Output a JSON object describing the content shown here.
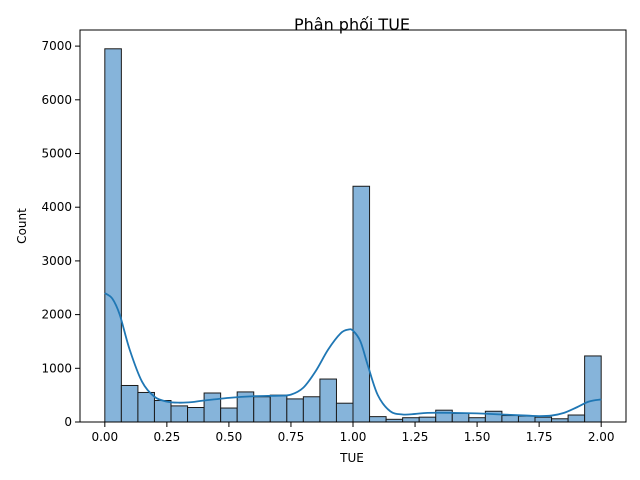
{
  "chart_data": {
    "type": "bar",
    "title": "Phân phối TUE",
    "xlabel": "TUE",
    "ylabel": "Count",
    "xlim": [
      -0.1,
      2.1
    ],
    "ylim": [
      0,
      7300
    ],
    "x_ticks": [
      "0.00",
      "0.25",
      "0.50",
      "0.75",
      "1.00",
      "1.25",
      "1.50",
      "1.75",
      "2.00"
    ],
    "y_ticks": [
      "0",
      "1000",
      "2000",
      "3000",
      "4000",
      "5000",
      "6000",
      "7000"
    ],
    "bin_width": 0.0667,
    "bins": [
      {
        "x0": 0.0,
        "count": 6950
      },
      {
        "x0": 0.0667,
        "count": 680
      },
      {
        "x0": 0.1333,
        "count": 550
      },
      {
        "x0": 0.2,
        "count": 400
      },
      {
        "x0": 0.2667,
        "count": 300
      },
      {
        "x0": 0.3333,
        "count": 270
      },
      {
        "x0": 0.4,
        "count": 540
      },
      {
        "x0": 0.4667,
        "count": 260
      },
      {
        "x0": 0.5333,
        "count": 560
      },
      {
        "x0": 0.6,
        "count": 470
      },
      {
        "x0": 0.6667,
        "count": 500
      },
      {
        "x0": 0.7333,
        "count": 430
      },
      {
        "x0": 0.8,
        "count": 470
      },
      {
        "x0": 0.8667,
        "count": 800
      },
      {
        "x0": 0.9333,
        "count": 350
      },
      {
        "x0": 1.0,
        "count": 4390
      },
      {
        "x0": 1.0667,
        "count": 100
      },
      {
        "x0": 1.1333,
        "count": 50
      },
      {
        "x0": 1.2,
        "count": 80
      },
      {
        "x0": 1.2667,
        "count": 90
      },
      {
        "x0": 1.3333,
        "count": 220
      },
      {
        "x0": 1.4,
        "count": 160
      },
      {
        "x0": 1.4667,
        "count": 80
      },
      {
        "x0": 1.5333,
        "count": 200
      },
      {
        "x0": 1.6,
        "count": 120
      },
      {
        "x0": 1.6667,
        "count": 110
      },
      {
        "x0": 1.7333,
        "count": 90
      },
      {
        "x0": 1.8,
        "count": 60
      },
      {
        "x0": 1.8667,
        "count": 130
      },
      {
        "x0": 1.9333,
        "count": 1230
      }
    ],
    "kde": {
      "x": [
        0.0,
        0.03,
        0.06,
        0.1,
        0.15,
        0.2,
        0.25,
        0.3,
        0.35,
        0.4,
        0.5,
        0.6,
        0.7,
        0.75,
        0.8,
        0.85,
        0.9,
        0.95,
        0.98,
        1.0,
        1.03,
        1.06,
        1.1,
        1.15,
        1.2,
        1.25,
        1.3,
        1.4,
        1.5,
        1.6,
        1.7,
        1.75,
        1.8,
        1.85,
        1.9,
        1.95,
        2.0
      ],
      "y": [
        2400,
        2300,
        2000,
        1350,
        750,
        470,
        380,
        360,
        370,
        400,
        450,
        480,
        490,
        510,
        640,
        950,
        1350,
        1650,
        1720,
        1700,
        1500,
        1050,
        500,
        200,
        140,
        150,
        170,
        170,
        160,
        140,
        120,
        110,
        120,
        170,
        270,
        380,
        420
      ]
    },
    "colors": {
      "bar_fill": "#86b4da",
      "bar_edge": "#1a1a1a",
      "kde_line": "#1f77b4"
    },
    "grid": false,
    "legend": "none"
  }
}
